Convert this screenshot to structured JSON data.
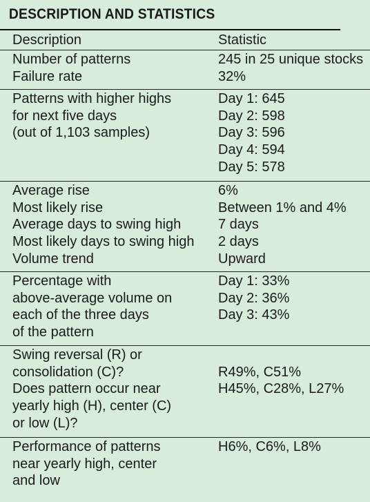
{
  "title": "DESCRIPTION AND STATISTICS",
  "headers": {
    "description": "Description",
    "statistic": "Statistic"
  },
  "groups": [
    {
      "description": [
        "Number of patterns",
        "Failure rate"
      ],
      "statistic": [
        "245 in 25 unique stocks",
        "32%"
      ]
    },
    {
      "description": [
        "Patterns with higher highs",
        "for next five days",
        "(out of 1,103 samples)"
      ],
      "statistic": [
        "Day 1: 645",
        "Day 2: 598",
        "Day 3: 596",
        "Day 4: 594",
        "Day 5: 578"
      ]
    },
    {
      "description": [
        "Average rise",
        "Most likely rise",
        "Average days to swing high",
        "Most likely days to swing high",
        "Volume trend"
      ],
      "statistic": [
        "6%",
        "Between 1% and 4%",
        "7 days",
        "2 days",
        "Upward"
      ]
    },
    {
      "description": [
        "Percentage with",
        "above-average volume on",
        "each of the three days",
        "of the pattern"
      ],
      "statistic": [
        "Day 1: 33%",
        "Day 2: 36%",
        "Day 3: 43%"
      ]
    },
    {
      "description": [
        "Swing reversal (R) or",
        "consolidation (C)?",
        "Does pattern occur near",
        "yearly high (H), center (C)",
        "or low (L)?"
      ],
      "statistic": [
        "",
        "R49%, C51%",
        "H45%, C28%, L27%"
      ]
    },
    {
      "description": [
        "Performance of patterns",
        "near yearly high, center",
        "and low"
      ],
      "statistic": [
        "H6%, C6%, L8%"
      ]
    }
  ]
}
